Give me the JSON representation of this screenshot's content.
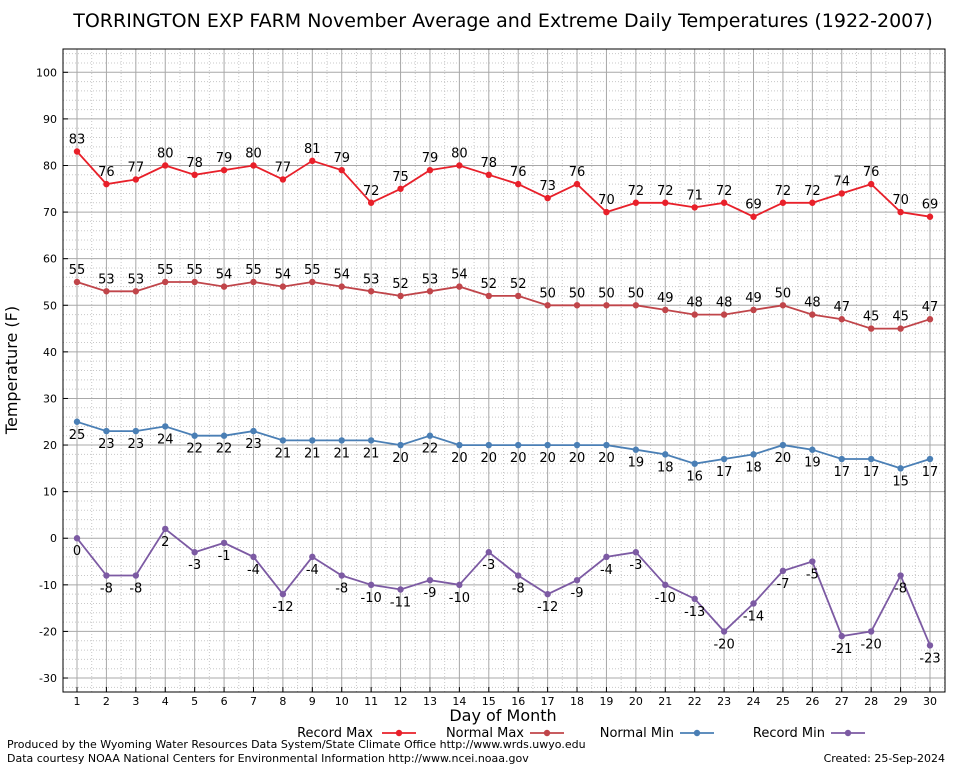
{
  "title": "TORRINGTON EXP FARM November Average and Extreme Daily Temperatures (1922-2007)",
  "footer": {
    "produced_by": "Produced by the Wyoming Water Resources Data System/State Climate Office http://www.wrds.uwyo.edu",
    "data_courtesy": "Data courtesy NOAA National Centers for Environmental Information http://www.ncei.noaa.gov",
    "created": "Created: 25-Sep-2024"
  },
  "chart_data": {
    "type": "line",
    "title": "TORRINGTON EXP FARM November Average and Extreme Daily Temperatures (1922-2007)",
    "xlabel": "Day of Month",
    "ylabel": "Temperature (F)",
    "x": [
      1,
      2,
      3,
      4,
      5,
      6,
      7,
      8,
      9,
      10,
      11,
      12,
      13,
      14,
      15,
      16,
      17,
      18,
      19,
      20,
      21,
      22,
      23,
      24,
      25,
      26,
      27,
      28,
      29,
      30
    ],
    "xlim": [
      1,
      30
    ],
    "ylim": [
      -33,
      105
    ],
    "yticks": [
      -30,
      -20,
      -10,
      0,
      10,
      20,
      30,
      40,
      50,
      60,
      70,
      80,
      90,
      100
    ],
    "grid": true,
    "legend_position": "bottom",
    "series": [
      {
        "name": "Record Max",
        "color": "#e8202a",
        "values": [
          83,
          76,
          77,
          80,
          78,
          79,
          80,
          77,
          81,
          79,
          72,
          75,
          79,
          80,
          78,
          76,
          73,
          76,
          70,
          72,
          72,
          71,
          72,
          69,
          72,
          72,
          74,
          76,
          70,
          69
        ]
      },
      {
        "name": "Normal Max",
        "color": "#c0454a",
        "values": [
          55,
          53,
          53,
          55,
          55,
          54,
          55,
          54,
          55,
          54,
          53,
          52,
          53,
          54,
          52,
          52,
          50,
          50,
          50,
          50,
          49,
          48,
          48,
          49,
          50,
          48,
          47,
          45,
          45,
          47
        ]
      },
      {
        "name": "Normal Min",
        "color": "#4a7fb5",
        "values": [
          25,
          23,
          23,
          24,
          22,
          22,
          23,
          21,
          21,
          21,
          21,
          20,
          22,
          20,
          20,
          20,
          20,
          20,
          20,
          19,
          18,
          16,
          17,
          18,
          20,
          19,
          17,
          17,
          15,
          17
        ]
      },
      {
        "name": "Record Min",
        "color": "#7c5aa3",
        "values": [
          0,
          -8,
          -8,
          2,
          -3,
          -1,
          -4,
          -12,
          -4,
          -8,
          -10,
          -11,
          -9,
          -10,
          -3,
          -8,
          -12,
          -9,
          -4,
          -3,
          -10,
          -13,
          -20,
          -14,
          -7,
          -5,
          -21,
          -20,
          -8,
          -23
        ]
      }
    ]
  }
}
